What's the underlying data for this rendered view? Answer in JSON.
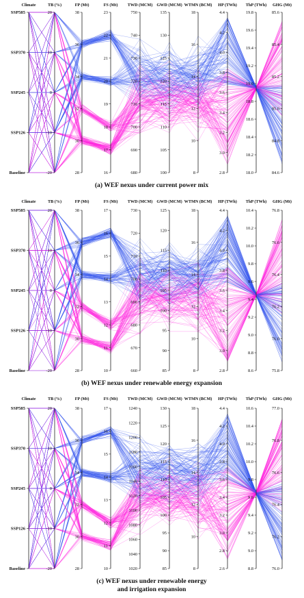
{
  "colors": {
    "magenta": "#ff22dd",
    "blue": "#3355ee",
    "axis": "#222222"
  },
  "chart_data": [
    {
      "type": "parallel-coordinates",
      "caption": "(a) WEF nexus under current power mix",
      "axes": [
        {
          "title": "Climate",
          "kind": "categorical",
          "categories": [
            "SSP585",
            "SSP370",
            "SSP245",
            "SSP126",
            "Baseline"
          ]
        },
        {
          "title": "TB (%)",
          "kind": "numeric",
          "range": [
            -20,
            20
          ],
          "ticks": [
            "20",
            "10",
            "0",
            "-10",
            "-20"
          ]
        },
        {
          "title": "FP (Mt)",
          "kind": "numeric",
          "range": [
            28,
            38
          ],
          "ticks": [
            "38",
            "36",
            "34",
            "32",
            "30",
            "28"
          ]
        },
        {
          "title": "FS (Mt)",
          "kind": "numeric",
          "range": [
            16,
            23
          ],
          "ticks": [
            "23",
            "22",
            "21",
            "20",
            "19",
            "18",
            "17",
            "16"
          ]
        },
        {
          "title": "TWD (MCM)",
          "kind": "numeric",
          "range": [
            680,
            750
          ],
          "ticks": [
            "750",
            "740",
            "730",
            "720",
            "710",
            "700",
            "690",
            "680"
          ]
        },
        {
          "title": "GWD (MCM)",
          "kind": "numeric",
          "range": [
            100,
            135
          ],
          "ticks": [
            "135",
            "130",
            "125",
            "120",
            "115",
            "110",
            "105",
            "100"
          ]
        },
        {
          "title": "WTMN (BCM)",
          "kind": "numeric",
          "range": [
            8,
            18
          ],
          "ticks": [
            "18",
            "16",
            "14",
            "12",
            "10",
            "8"
          ]
        },
        {
          "title": "HP (TWh)",
          "kind": "numeric",
          "range": [
            2.8,
            4.4
          ],
          "ticks": [
            "4.4",
            "4.2",
            "4.0",
            "3.8",
            "3.6",
            "3.4",
            "3.2",
            "3.0",
            "2.8"
          ]
        },
        {
          "title": "ThP (TWh)",
          "kind": "numeric",
          "range": [
            18.0,
            19.8
          ],
          "ticks": [
            "19.8",
            "19.6",
            "19.4",
            "19.2",
            "19.0",
            "18.8",
            "18.6",
            "18.4",
            "18.2",
            "18.0"
          ]
        },
        {
          "title": "GHG (Mt)",
          "kind": "numeric",
          "range": [
            84.6,
            85.6
          ],
          "ticks": [
            "85.6",
            "85.4",
            "85.2",
            "85.0",
            "84.8",
            "84.6"
          ]
        }
      ],
      "tb_levels": [
        20,
        10,
        0,
        -10,
        -20
      ],
      "fp_levels": [
        36,
        34,
        32,
        30
      ],
      "fs_levels": [
        22,
        20,
        18,
        17
      ],
      "converge": {
        "axis": 8,
        "value": 18.95
      }
    },
    {
      "type": "parallel-coordinates",
      "caption": "(b) WEF nexus under renewable energy expansion",
      "axes": [
        {
          "title": "Climate",
          "kind": "categorical",
          "categories": [
            "SSP585",
            "SSP370",
            "SSP245",
            "SSP126",
            "Baseline"
          ]
        },
        {
          "title": "TB (%)",
          "kind": "numeric",
          "range": [
            -20,
            20
          ],
          "ticks": [
            "20",
            "10",
            "0",
            "-10",
            "-20"
          ]
        },
        {
          "title": "FP (Mt)",
          "kind": "numeric",
          "range": [
            28,
            38
          ],
          "ticks": [
            "38",
            "36",
            "34",
            "32",
            "30",
            "28"
          ]
        },
        {
          "title": "FS (Mt)",
          "kind": "numeric",
          "range": [
            10,
            17
          ],
          "ticks": [
            "17",
            "16",
            "15",
            "14",
            "13",
            "12",
            "11",
            "10"
          ]
        },
        {
          "title": "TWD (MCM)",
          "kind": "numeric",
          "range": [
            660,
            730
          ],
          "ticks": [
            "730",
            "720",
            "710",
            "700",
            "690",
            "680",
            "670",
            "660"
          ]
        },
        {
          "title": "GWD (MCM)",
          "kind": "numeric",
          "range": [
            85,
            125
          ],
          "ticks": [
            "125",
            "120",
            "115",
            "110",
            "105",
            "100",
            "95",
            "90",
            "85"
          ]
        },
        {
          "title": "WTMN (BCM)",
          "kind": "numeric",
          "range": [
            8,
            18
          ],
          "ticks": [
            "18",
            "16",
            "14",
            "12",
            "10",
            "8"
          ]
        },
        {
          "title": "HP (TWh)",
          "kind": "numeric",
          "range": [
            2.8,
            4.4
          ],
          "ticks": [
            "4.4",
            "4.2",
            "4.0",
            "3.8",
            "3.6",
            "3.4",
            "3.2",
            "3.0",
            "2.8"
          ]
        },
        {
          "title": "ThP (TWh)",
          "kind": "numeric",
          "range": [
            8.6,
            10.4
          ],
          "ticks": [
            "10.4",
            "10.2",
            "10.0",
            "9.8",
            "9.6",
            "9.4",
            "9.2",
            "9.0",
            "8.8",
            "8.6"
          ]
        },
        {
          "title": "GHG (Mt)",
          "kind": "numeric",
          "range": [
            75.8,
            76.8
          ],
          "ticks": [
            "76.8",
            "76.6",
            "76.4",
            "76.2",
            "76.0",
            "75.8"
          ]
        }
      ],
      "tb_levels": [
        20,
        10,
        0,
        -10,
        -20
      ],
      "fp_levels": [
        36,
        34,
        32,
        30
      ],
      "fs_levels": [
        16,
        14,
        12,
        11
      ],
      "converge": {
        "axis": 8,
        "value": 9.45
      }
    },
    {
      "type": "parallel-coordinates",
      "caption": "(c) WEF nexus under renewable energy",
      "caption_line2": "and irrigation expansion",
      "axes": [
        {
          "title": "Climate",
          "kind": "categorical",
          "categories": [
            "SSP585",
            "SSP370",
            "SSP245",
            "SSP126",
            "Baseline"
          ]
        },
        {
          "title": "TB (%)",
          "kind": "numeric",
          "range": [
            -20,
            20
          ],
          "ticks": [
            "20",
            "10",
            "0",
            "-10",
            "-20"
          ]
        },
        {
          "title": "FP (Mt)",
          "kind": "numeric",
          "range": [
            28,
            38
          ],
          "ticks": [
            "38",
            "36",
            "34",
            "32",
            "30",
            "28"
          ]
        },
        {
          "title": "FS (Mt)",
          "kind": "numeric",
          "range": [
            10,
            17
          ],
          "ticks": [
            "17",
            "16",
            "15",
            "14",
            "13",
            "12",
            "11",
            "10"
          ]
        },
        {
          "title": "TWD (MCM)",
          "kind": "numeric",
          "range": [
            1020,
            1240
          ],
          "ticks": [
            "1240",
            "1220",
            "1200",
            "1180",
            "1160",
            "1140",
            "1120",
            "1100",
            "1080",
            "1060",
            "1040",
            "1020"
          ]
        },
        {
          "title": "GWD (MCM)",
          "kind": "numeric",
          "range": [
            85,
            130
          ],
          "ticks": [
            "130",
            "125",
            "120",
            "115",
            "110",
            "105",
            "100",
            "95",
            "90",
            "85"
          ]
        },
        {
          "title": "WTMN (BCM)",
          "kind": "numeric",
          "range": [
            8,
            18
          ],
          "ticks": [
            "18",
            "16",
            "14",
            "12",
            "10",
            "8"
          ]
        },
        {
          "title": "HP (TWh)",
          "kind": "numeric",
          "range": [
            2.6,
            4.4
          ],
          "ticks": [
            "4.4",
            "4.2",
            "4.0",
            "3.8",
            "3.6",
            "3.4",
            "3.2",
            "3.0",
            "2.8",
            "2.6"
          ]
        },
        {
          "title": "ThP (TWh)",
          "kind": "numeric",
          "range": [
            8.8,
            10.6
          ],
          "ticks": [
            "10.6",
            "10.4",
            "10.2",
            "10.0",
            "9.8",
            "9.6",
            "9.4",
            "9.2",
            "9.0",
            "8.8"
          ]
        },
        {
          "title": "GHG (Mt)",
          "kind": "numeric",
          "range": [
            76.0,
            77.0
          ],
          "ticks": [
            "77.0",
            "76.8",
            "76.6",
            "76.4",
            "76.2",
            "76.0"
          ]
        }
      ],
      "tb_levels": [
        20,
        10,
        0,
        -10,
        -20
      ],
      "fp_levels": [
        36,
        34,
        32,
        30
      ],
      "fs_levels": [
        16,
        14,
        12,
        11
      ],
      "converge": {
        "axis": 8,
        "value": 9.65
      }
    }
  ]
}
